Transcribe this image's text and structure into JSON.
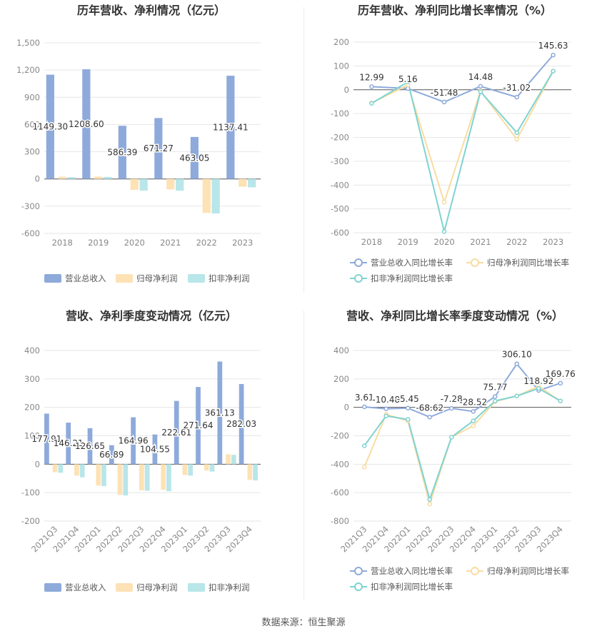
{
  "source": "数据来源：恒生聚源",
  "colors": {
    "revenue": "#8eaadb",
    "net_profit": "#fde2b5",
    "deducted_profit": "#b8e6e9",
    "revenue_line": "#8eaadb",
    "net_profit_line": "#f9dca2",
    "deducted_profit_line": "#7fd3d1"
  },
  "chart_data": [
    {
      "id": "annual-bar",
      "type": "bar",
      "title": "历年营收、净利情况（亿元）",
      "categories": [
        "2018",
        "2019",
        "2020",
        "2021",
        "2022",
        "2023"
      ],
      "ylim": [
        -600,
        1500
      ],
      "yticks": [
        -600,
        -300,
        0,
        300,
        600,
        900,
        1200,
        1500
      ],
      "ytick_labels": [
        "-600",
        "-300",
        "0",
        "300",
        "600",
        "900",
        "1,200",
        "1,500"
      ],
      "series": [
        {
          "name": "营业总收入",
          "values": [
            1149.3,
            1208.6,
            586.39,
            671.27,
            463.05,
            1137.41
          ],
          "labels": [
            "1149.30",
            "1208.60",
            "586.39",
            "671.27",
            "463.05",
            "1137.41"
          ]
        },
        {
          "name": "归母净利润",
          "values": [
            25,
            27,
            -120,
            -115,
            -375,
            -85
          ]
        },
        {
          "name": "扣非净利润",
          "values": [
            20,
            23,
            -128,
            -130,
            -380,
            -92
          ]
        }
      ],
      "legend": "bottom"
    },
    {
      "id": "annual-line",
      "type": "line",
      "title": "历年营收、净利同比增长率情况（%）",
      "categories": [
        "2018",
        "2019",
        "2020",
        "2021",
        "2022",
        "2023"
      ],
      "ylim": [
        -600,
        200
      ],
      "yticks": [
        -600,
        -500,
        -400,
        -300,
        -200,
        -100,
        0,
        100,
        200
      ],
      "ytick_labels": [
        "-600",
        "-500",
        "-400",
        "-300",
        "-200",
        "-100",
        "0",
        "100",
        "200"
      ],
      "series": [
        {
          "name": "营业总收入同比增长率",
          "values": [
            12.99,
            5.16,
            -51.48,
            14.48,
            -31.02,
            145.63
          ],
          "labels": [
            "12.99",
            "5.16",
            "-51.48",
            "14.48",
            "-31.02",
            "145.63"
          ]
        },
        {
          "name": "归母净利润同比增长率",
          "values": [
            -55,
            20,
            -472,
            -5,
            -208,
            78
          ]
        },
        {
          "name": "扣非净利润同比增长率",
          "values": [
            -57,
            33,
            -595,
            -8,
            -180,
            78
          ]
        }
      ],
      "legend": "bottom"
    },
    {
      "id": "quarter-bar",
      "type": "bar",
      "title": "营收、净利季度变动情况（亿元）",
      "categories": [
        "2021Q3",
        "2021Q4",
        "2022Q1",
        "2022Q2",
        "2022Q3",
        "2022Q4",
        "2023Q1",
        "2023Q2",
        "2023Q3",
        "2023Q4"
      ],
      "ylim": [
        -200,
        400
      ],
      "yticks": [
        -200,
        -100,
        0,
        100,
        200,
        300,
        400
      ],
      "ytick_labels": [
        "-200",
        "-100",
        "0",
        "100",
        "200",
        "300",
        "400"
      ],
      "series": [
        {
          "name": "营业总收入",
          "values": [
            177.91,
            146.21,
            126.65,
            66.89,
            164.96,
            104.55,
            222.61,
            271.64,
            361.13,
            282.03
          ],
          "labels": [
            "177.91",
            "146.21",
            "126.65",
            "66.89",
            "164.96",
            "104.55",
            "222.61",
            "271.64",
            "361.13",
            "282.03"
          ]
        },
        {
          "name": "归母净利润",
          "values": [
            -28,
            -40,
            -75,
            -108,
            -92,
            -90,
            -38,
            -22,
            35,
            -55
          ]
        },
        {
          "name": "扣非净利润",
          "values": [
            -30,
            -46,
            -77,
            -110,
            -93,
            -95,
            -40,
            -26,
            33,
            -57
          ]
        }
      ],
      "legend": "bottom"
    },
    {
      "id": "quarter-line",
      "type": "line",
      "title": "营收、净利同比增长率季度变动情况（%）",
      "categories": [
        "2021Q3",
        "2021Q4",
        "2022Q1",
        "2022Q2",
        "2022Q3",
        "2022Q4",
        "2023Q1",
        "2023Q2",
        "2023Q3",
        "2023Q4"
      ],
      "ylim": [
        -800,
        400
      ],
      "yticks": [
        -800,
        -600,
        -400,
        -200,
        0,
        200,
        400
      ],
      "ytick_labels": [
        "-800",
        "-600",
        "-400",
        "-200",
        "0",
        "200",
        "400"
      ],
      "series": [
        {
          "name": "营业总收入同比增长率",
          "values": [
            3.61,
            -10.48,
            -5.45,
            -68.62,
            -7.28,
            -28.52,
            75.77,
            306.1,
            118.92,
            169.76
          ],
          "labels": [
            "3.61",
            "-10.48",
            "-5.45",
            "-68.62",
            "-7.28",
            "-28.52",
            "75.77",
            "306.10",
            "118.92",
            "169.76"
          ]
        },
        {
          "name": "归母净利润同比增长率",
          "values": [
            -420,
            -50,
            -95,
            -680,
            -210,
            -130,
            40,
            80,
            148,
            45
          ]
        },
        {
          "name": "扣非净利润同比增长率",
          "values": [
            -270,
            -60,
            -85,
            -648,
            -210,
            -95,
            45,
            80,
            133,
            45
          ]
        }
      ],
      "legend": "bottom"
    }
  ]
}
